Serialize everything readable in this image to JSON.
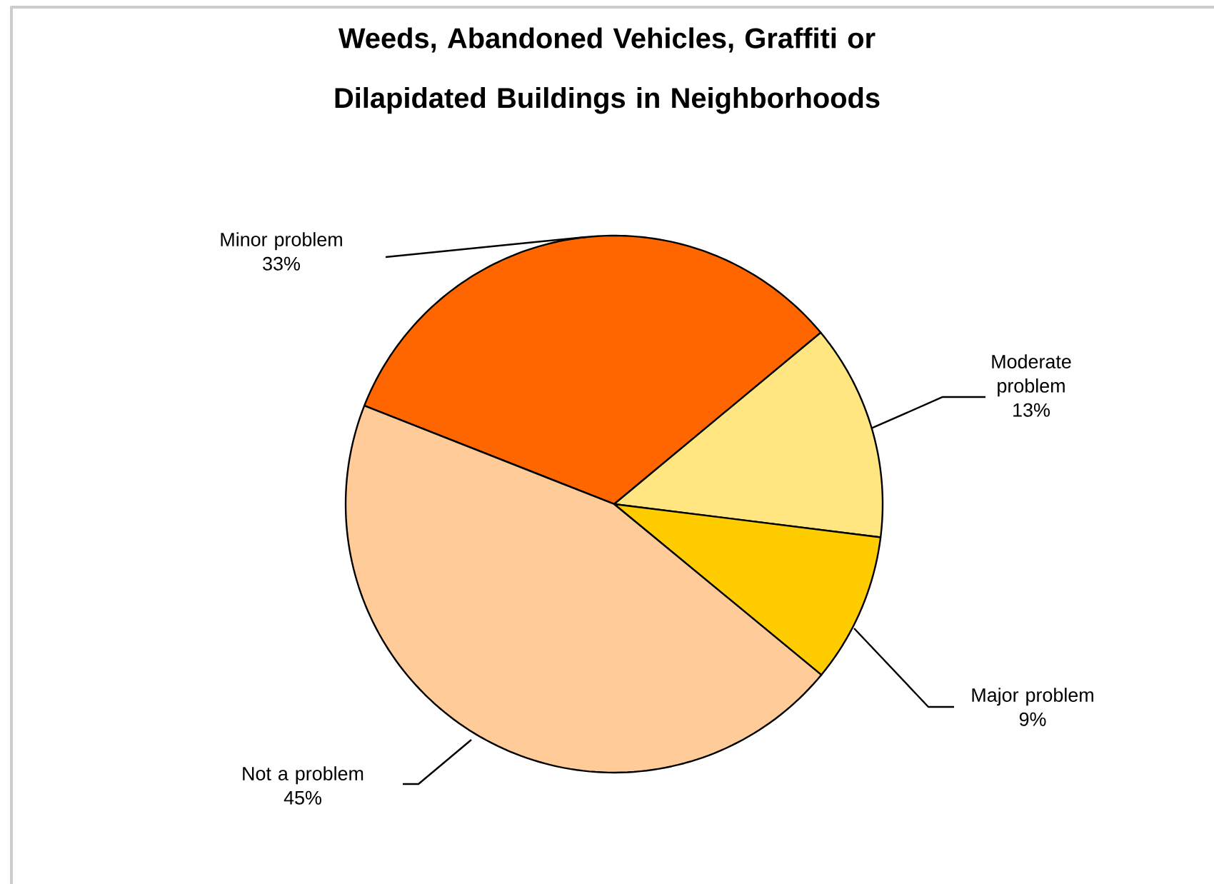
{
  "chart_data": {
    "type": "pie",
    "title": "Weeds, Abandoned Vehicles, Graffiti or Dilapidated Buildings in Neighborhoods",
    "categories": [
      "Minor problem",
      "Moderate problem",
      "Major problem",
      "Not a problem"
    ],
    "values": [
      33,
      13,
      9,
      45
    ],
    "value_labels": [
      "33%",
      "13%",
      "9%",
      "45%"
    ],
    "colors": [
      "#ff6600",
      "#ffe680",
      "#ffcc00",
      "#ffcc99"
    ]
  }
}
